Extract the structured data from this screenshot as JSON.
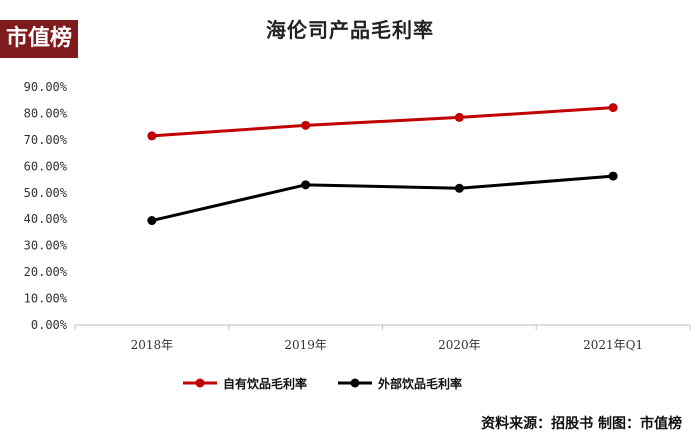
{
  "logo": "市值榜",
  "source_text": "资料来源：招股书  制图：市值榜",
  "chart_data": {
    "type": "line",
    "title": "海伦司产品毛利率",
    "categories": [
      "2018年",
      "2019年",
      "2020年",
      "2021年Q1"
    ],
    "ylim": [
      0,
      90
    ],
    "yticks": [
      "0.00%",
      "10.00%",
      "20.00%",
      "30.00%",
      "40.00%",
      "50.00%",
      "60.00%",
      "70.00%",
      "80.00%",
      "90.00%"
    ],
    "grid": false,
    "legend": "bottom",
    "series": [
      {
        "name": "自有饮品毛利率",
        "color": "#c00000",
        "values": [
          71.5,
          75.5,
          78.5,
          82.2
        ]
      },
      {
        "name": "外部饮品毛利率",
        "color": "#000000",
        "values": [
          39.5,
          53.0,
          51.7,
          56.3
        ]
      }
    ]
  }
}
